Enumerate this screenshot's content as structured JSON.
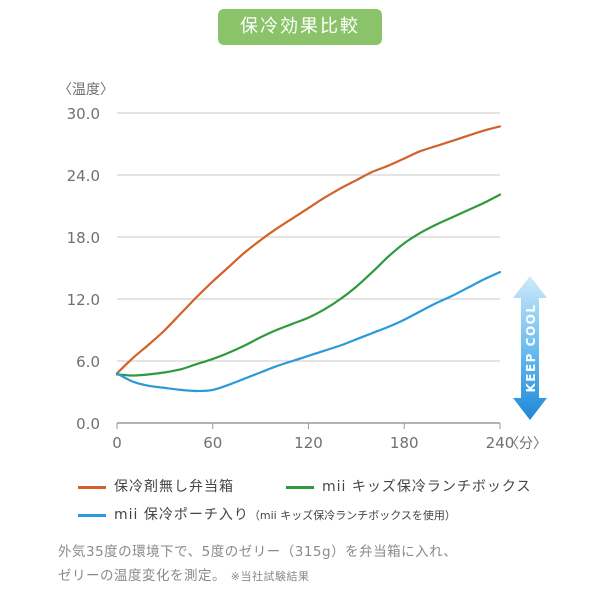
{
  "header": {
    "badge": "保冷効果比較"
  },
  "arrow_label": "KEEP COOL",
  "chart_data": {
    "type": "line",
    "ylabel": "〈温度〉",
    "xlabel": "〈分〉",
    "xlim": [
      0,
      240
    ],
    "ylim": [
      0,
      30
    ],
    "x_ticks": [
      "0",
      "60",
      "120",
      "180",
      "240"
    ],
    "y_ticks": [
      "0.0",
      "6.0",
      "12.0",
      "18.0",
      "24.0",
      "30.0"
    ],
    "grid": true,
    "legend": "bottom",
    "series": [
      {
        "name": "保冷剤無し弁当箱",
        "color": "#d2622a",
        "x": [
          0,
          10,
          20,
          30,
          40,
          50,
          60,
          70,
          80,
          90,
          100,
          110,
          120,
          130,
          140,
          150,
          160,
          170,
          180,
          190,
          200,
          210,
          220,
          230,
          240
        ],
        "y": [
          4.8,
          6.3,
          7.6,
          9.0,
          10.6,
          12.2,
          13.7,
          15.1,
          16.5,
          17.7,
          18.8,
          19.8,
          20.8,
          21.8,
          22.7,
          23.5,
          24.3,
          24.9,
          25.6,
          26.3,
          26.8,
          27.3,
          27.8,
          28.3,
          28.7
        ]
      },
      {
        "name": "mii キッズ保冷ランチボックス",
        "color": "#2e9a3d",
        "x": [
          0,
          10,
          20,
          30,
          40,
          50,
          60,
          70,
          80,
          90,
          100,
          110,
          120,
          130,
          140,
          150,
          160,
          170,
          180,
          190,
          200,
          210,
          220,
          230,
          240
        ],
        "y": [
          4.7,
          4.6,
          4.7,
          4.9,
          5.2,
          5.7,
          6.2,
          6.8,
          7.5,
          8.3,
          9.0,
          9.6,
          10.2,
          11.0,
          12.0,
          13.2,
          14.6,
          16.1,
          17.4,
          18.4,
          19.2,
          19.9,
          20.6,
          21.3,
          22.1
        ]
      },
      {
        "name": "mii 保冷ポーチ入り",
        "note": "（mii キッズ保冷ランチボックスを使用）",
        "color": "#2a9ad8",
        "x": [
          0,
          10,
          20,
          30,
          40,
          50,
          60,
          70,
          80,
          90,
          100,
          110,
          120,
          130,
          140,
          150,
          160,
          170,
          180,
          190,
          200,
          210,
          220,
          230,
          240
        ],
        "y": [
          4.8,
          4.0,
          3.6,
          3.4,
          3.2,
          3.1,
          3.2,
          3.7,
          4.3,
          4.9,
          5.5,
          6.0,
          6.5,
          7.0,
          7.5,
          8.1,
          8.7,
          9.3,
          10.0,
          10.8,
          11.6,
          12.3,
          13.1,
          13.9,
          14.6
        ]
      }
    ]
  },
  "note": {
    "line1": "外気35度の環境下で、5度のゼリー（315g）を弁当箱に入れ、",
    "line2": "ゼリーの温度変化を測定。",
    "line2_small": "※当社試験結果"
  }
}
